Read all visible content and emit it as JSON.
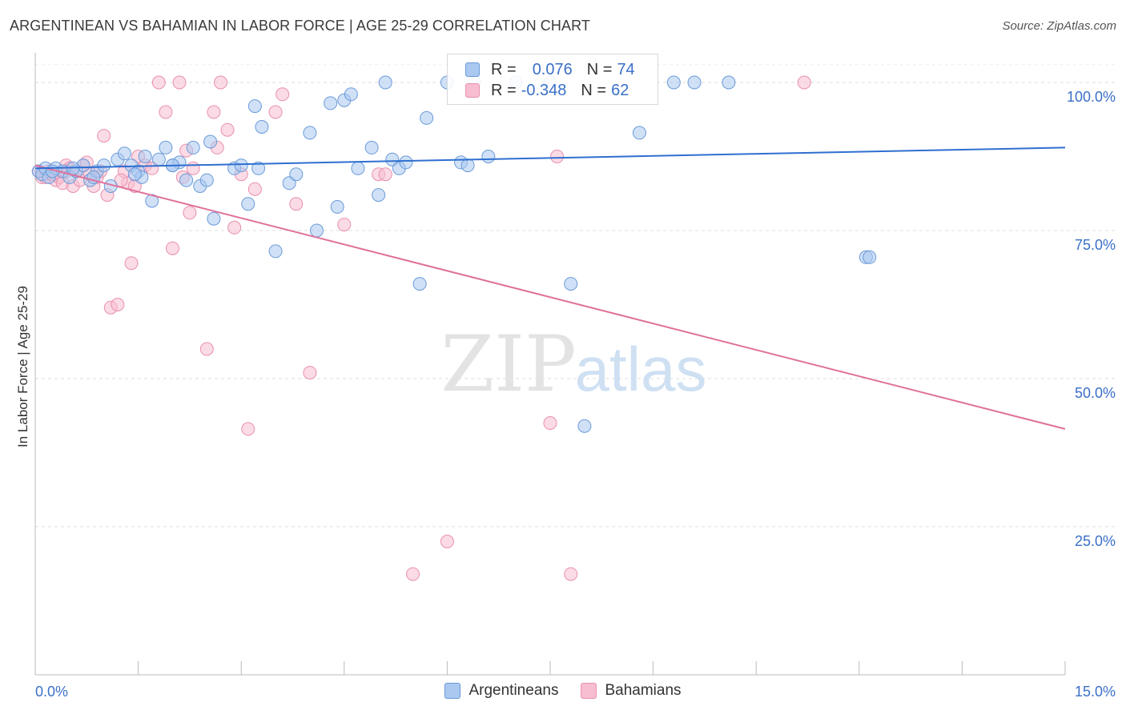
{
  "header": {
    "title": "ARGENTINEAN VS BAHAMIAN IN LABOR FORCE | AGE 25-29 CORRELATION CHART",
    "source": "Source: ZipAtlas.com"
  },
  "legend": {
    "rows": [
      {
        "r_label": "R =",
        "r_value": "0.076",
        "n_label": "N =",
        "n_value": "74"
      },
      {
        "r_label": "R =",
        "r_value": "-0.348",
        "n_label": "N =",
        "n_value": "62"
      }
    ],
    "series": [
      "Argentineans",
      "Bahamians"
    ]
  },
  "watermark": {
    "part1": "ZIP",
    "part2": "atlas"
  },
  "colors": {
    "blue_fill": "#aac8f0",
    "blue_stroke": "#6a9ad8",
    "blue_line": "#2f6fd0",
    "pink_fill": "#f7bdd0",
    "pink_stroke": "#e890ae",
    "pink_line": "#e0709a",
    "tick_label": "#3a6fc8",
    "grid": "#dddddd"
  },
  "chart_data": {
    "type": "scatter",
    "title": "ARGENTINEAN VS BAHAMIAN IN LABOR FORCE | AGE 25-29 CORRELATION CHART",
    "xlabel": "",
    "ylabel": "In Labor Force | Age 25-29",
    "xlim": [
      0,
      15
    ],
    "ylim": [
      0,
      105
    ],
    "x_tick_labels": [
      "0.0%",
      "15.0%"
    ],
    "y_ticks": [
      25,
      50,
      75,
      100
    ],
    "y_tick_labels": [
      "25.0%",
      "50.0%",
      "75.0%",
      "100.0%"
    ],
    "grid": true,
    "legend_placement": "top-center",
    "series": [
      {
        "name": "Argentineans",
        "R": 0.076,
        "N": 74,
        "trend": {
          "x": [
            0,
            15
          ],
          "y": [
            85.5,
            89.0
          ]
        },
        "points": [
          [
            0.05,
            85
          ],
          [
            0.1,
            84.5
          ],
          [
            0.15,
            85.5
          ],
          [
            0.2,
            84
          ],
          [
            0.3,
            85.5
          ],
          [
            0.4,
            85
          ],
          [
            0.5,
            84
          ],
          [
            0.6,
            85
          ],
          [
            0.7,
            86
          ],
          [
            0.8,
            83.5
          ],
          [
            0.9,
            85
          ],
          [
            1.0,
            86
          ],
          [
            1.1,
            82.5
          ],
          [
            1.2,
            87
          ],
          [
            1.3,
            88
          ],
          [
            1.4,
            86
          ],
          [
            1.5,
            85
          ],
          [
            1.55,
            84
          ],
          [
            1.7,
            80
          ],
          [
            1.8,
            87
          ],
          [
            1.9,
            89
          ],
          [
            2.0,
            86
          ],
          [
            2.1,
            86.5
          ],
          [
            2.2,
            83.5
          ],
          [
            2.3,
            89
          ],
          [
            2.4,
            82.5
          ],
          [
            2.5,
            83.5
          ],
          [
            2.55,
            90
          ],
          [
            2.6,
            77
          ],
          [
            2.9,
            85.5
          ],
          [
            3.0,
            86
          ],
          [
            3.1,
            79.5
          ],
          [
            3.2,
            96
          ],
          [
            3.3,
            92.5
          ],
          [
            3.5,
            71.5
          ],
          [
            3.7,
            83
          ],
          [
            3.8,
            84.5
          ],
          [
            4.0,
            91.5
          ],
          [
            4.1,
            75
          ],
          [
            4.3,
            96.5
          ],
          [
            4.4,
            79
          ],
          [
            4.5,
            97
          ],
          [
            4.6,
            98
          ],
          [
            4.7,
            85.5
          ],
          [
            4.9,
            89
          ],
          [
            5.0,
            81
          ],
          [
            5.1,
            100
          ],
          [
            5.2,
            87
          ],
          [
            5.3,
            85.5
          ],
          [
            5.4,
            86.5
          ],
          [
            5.6,
            66
          ],
          [
            5.7,
            94
          ],
          [
            6.0,
            100
          ],
          [
            6.2,
            86.5
          ],
          [
            6.3,
            86
          ],
          [
            6.4,
            100
          ],
          [
            6.6,
            87.5
          ],
          [
            7.0,
            100
          ],
          [
            7.5,
            100
          ],
          [
            7.8,
            66
          ],
          [
            8.0,
            42
          ],
          [
            8.8,
            91.5
          ],
          [
            9.3,
            100
          ],
          [
            9.6,
            100
          ],
          [
            10.1,
            100
          ],
          [
            12.1,
            70.5
          ],
          [
            12.15,
            70.5
          ],
          [
            2.0,
            86
          ],
          [
            1.6,
            87.5
          ],
          [
            0.85,
            84
          ],
          [
            0.55,
            85.5
          ],
          [
            0.25,
            85
          ],
          [
            1.45,
            84.5
          ],
          [
            3.25,
            85.5
          ]
        ]
      },
      {
        "name": "Bahamians",
        "R": -0.348,
        "N": 62,
        "trend": {
          "x": [
            0,
            15
          ],
          "y": [
            86.0,
            41.5
          ]
        },
        "points": [
          [
            0.05,
            85
          ],
          [
            0.1,
            84
          ],
          [
            0.15,
            84
          ],
          [
            0.2,
            85
          ],
          [
            0.3,
            83.5
          ],
          [
            0.35,
            84
          ],
          [
            0.4,
            83
          ],
          [
            0.45,
            86
          ],
          [
            0.5,
            85.5
          ],
          [
            0.55,
            82.5
          ],
          [
            0.6,
            85
          ],
          [
            0.65,
            83.5
          ],
          [
            0.7,
            86
          ],
          [
            0.75,
            86.5
          ],
          [
            0.8,
            84.5
          ],
          [
            0.85,
            82.5
          ],
          [
            0.9,
            84
          ],
          [
            0.95,
            85
          ],
          [
            1.0,
            91
          ],
          [
            1.05,
            81
          ],
          [
            1.1,
            62
          ],
          [
            1.2,
            62.5
          ],
          [
            1.3,
            85
          ],
          [
            1.35,
            83
          ],
          [
            1.4,
            69.5
          ],
          [
            1.45,
            82.5
          ],
          [
            1.5,
            87.5
          ],
          [
            1.6,
            86
          ],
          [
            1.7,
            85.5
          ],
          [
            1.8,
            100
          ],
          [
            1.9,
            95
          ],
          [
            2.0,
            72
          ],
          [
            2.1,
            100
          ],
          [
            2.2,
            88.5
          ],
          [
            2.25,
            78
          ],
          [
            2.3,
            85.5
          ],
          [
            2.5,
            55
          ],
          [
            2.6,
            95
          ],
          [
            2.65,
            89
          ],
          [
            2.7,
            100
          ],
          [
            2.8,
            92
          ],
          [
            2.9,
            75.5
          ],
          [
            3.0,
            84.5
          ],
          [
            3.1,
            41.5
          ],
          [
            3.2,
            82
          ],
          [
            3.5,
            95
          ],
          [
            3.6,
            98
          ],
          [
            3.8,
            79.5
          ],
          [
            4.0,
            51
          ],
          [
            4.5,
            76
          ],
          [
            5.0,
            84.5
          ],
          [
            5.1,
            84.5
          ],
          [
            5.5,
            17
          ],
          [
            6.0,
            22.5
          ],
          [
            7.5,
            42.5
          ],
          [
            7.6,
            87.5
          ],
          [
            7.8,
            17
          ],
          [
            11.2,
            100
          ],
          [
            0.25,
            84.5
          ],
          [
            1.25,
            83.5
          ],
          [
            0.45,
            85
          ],
          [
            2.15,
            84
          ]
        ]
      }
    ]
  }
}
